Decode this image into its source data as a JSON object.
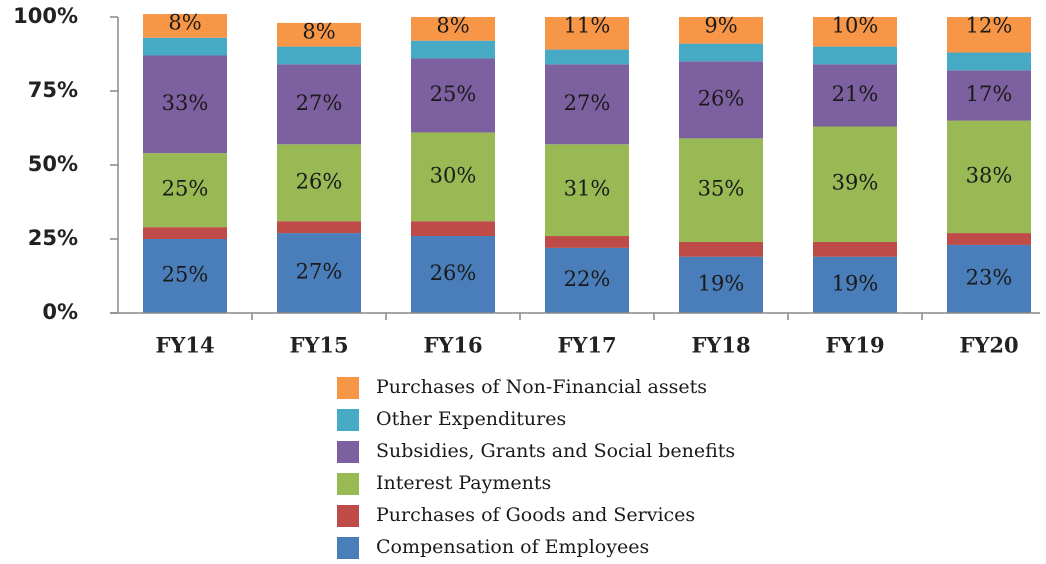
{
  "chart_data": {
    "type": "stacked_bar",
    "categories": [
      "FY14",
      "FY15",
      "FY16",
      "FY17",
      "FY18",
      "FY19",
      "FY20"
    ],
    "series": [
      {
        "name": "Compensation of Employees",
        "color": "#4a7ebb",
        "values": [
          25,
          27,
          26,
          22,
          19,
          19,
          23
        ],
        "value_labels": [
          "25%",
          "27%",
          "26%",
          "22%",
          "19%",
          "19%",
          "23%"
        ]
      },
      {
        "name": "Purchases of Goods and Services",
        "color": "#be4b48",
        "values": [
          4,
          4,
          5,
          4,
          5,
          5,
          4
        ]
      },
      {
        "name": "Interest Payments",
        "color": "#98b954",
        "values": [
          25,
          26,
          30,
          31,
          35,
          39,
          38
        ],
        "value_labels": [
          "25%",
          "26%",
          "30%",
          "31%",
          "35%",
          "39%",
          "38%"
        ]
      },
      {
        "name": "Subsidies, Grants and Social benefits",
        "color": "#7d60a0",
        "values": [
          33,
          27,
          25,
          27,
          26,
          21,
          17
        ],
        "value_labels": [
          "33%",
          "27%",
          "25%",
          "27%",
          "26%",
          "21%",
          "17%"
        ]
      },
      {
        "name": "Other Expenditures",
        "color": "#46aac5",
        "values": [
          6,
          6,
          6,
          5,
          6,
          6,
          6
        ]
      },
      {
        "name": "Purchases of Non-Financial assets",
        "color": "#f79646",
        "values": [
          8,
          8,
          8,
          11,
          9,
          10,
          12
        ],
        "value_labels": [
          "8%",
          "8%",
          "8%",
          "11%",
          "9%",
          "10%",
          "12%"
        ]
      }
    ],
    "ylim": [
      0,
      100
    ],
    "yticks": [
      {
        "value": 0,
        "label": "0%"
      },
      {
        "value": 25,
        "label": "25%"
      },
      {
        "value": 50,
        "label": "50%"
      },
      {
        "value": 75,
        "label": "75%"
      },
      {
        "value": 100,
        "label": "100%"
      }
    ],
    "legend": "bottom"
  }
}
